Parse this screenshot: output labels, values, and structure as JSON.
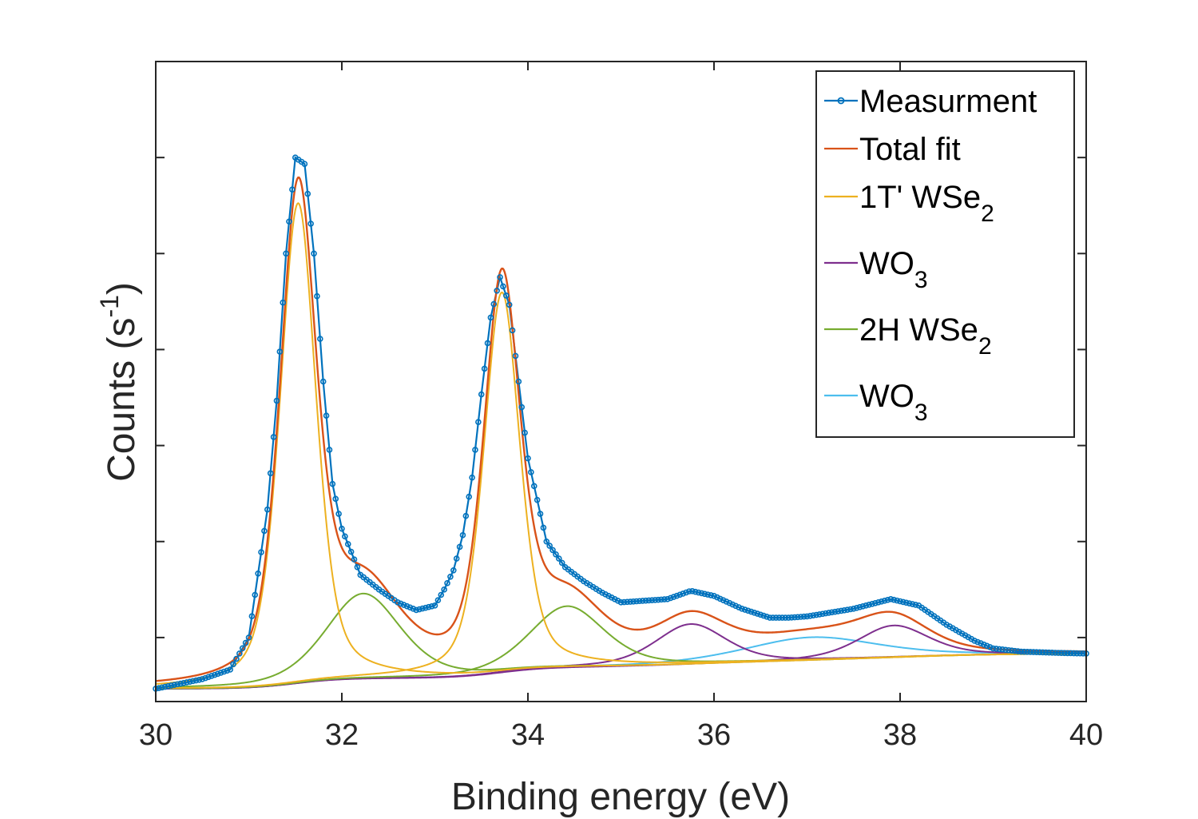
{
  "chart_data": {
    "type": "line",
    "xlabel": "Binding energy (eV)",
    "ylabel_main": "Counts (s",
    "ylabel_sup": "-1",
    "ylabel_close": ")",
    "xlim": [
      30,
      40
    ],
    "ylim": [
      0,
      1000
    ],
    "xticks": [
      30,
      32,
      34,
      36,
      38,
      40
    ],
    "yticks": [
      100,
      250,
      400,
      550,
      700,
      850
    ],
    "ytick_labels_shown": false,
    "grid": false,
    "legend_position": "top-right",
    "legend": [
      {
        "label": "Measurment",
        "sub": "",
        "color": "#0072BD",
        "marker": true
      },
      {
        "label": "Total fit",
        "sub": "",
        "color": "#D95319",
        "marker": false
      },
      {
        "label": "1T' WSe",
        "sub": "2",
        "color": "#EDB120",
        "marker": false
      },
      {
        "label": "WO",
        "sub": "3",
        "color": "#7E2F8E",
        "marker": false
      },
      {
        "label": "2H WSe",
        "sub": "2",
        "color": "#77AC30",
        "marker": false
      },
      {
        "label": "WO",
        "sub": "3",
        "color": "#4DBEEE",
        "marker": false
      }
    ],
    "background": {
      "start": 20,
      "end": 75,
      "step1_center": 31.5,
      "step2_center": 33.7,
      "step3_center": 35.9,
      "step4_center": 38.0
    },
    "components": [
      {
        "name": "1T' WSe2 (1)",
        "color": "#EDB120",
        "center": 31.53,
        "amplitude": 750,
        "fwhm": 0.46
      },
      {
        "name": "1T' WSe2 (2)",
        "color": "#EDB120",
        "center": 33.72,
        "amplitude": 594,
        "fwhm": 0.46
      },
      {
        "name": "2H WSe2 (1)",
        "color": "#77AC30",
        "center": 32.23,
        "amplitude": 133,
        "fwhm": 0.95
      },
      {
        "name": "2H WSe2 (2)",
        "color": "#77AC30",
        "center": 34.42,
        "amplitude": 96,
        "fwhm": 0.95
      },
      {
        "name": "WO3 (1)",
        "color": "#7E2F8E",
        "center": 35.75,
        "amplitude": 63,
        "fwhm": 0.9
      },
      {
        "name": "WO3 (2)",
        "color": "#7E2F8E",
        "center": 37.93,
        "amplitude": 50,
        "fwhm": 0.9
      },
      {
        "name": "WO3 (3)",
        "color": "#4DBEEE",
        "center": 37.05,
        "amplitude": 36,
        "fwhm": 1.7
      }
    ],
    "measurement": {
      "x_start": 30.0,
      "x_end": 40.0,
      "n_points": 301,
      "points": [
        [
          30.0,
          20
        ],
        [
          30.5,
          35
        ],
        [
          30.8,
          50
        ],
        [
          31.0,
          100
        ],
        [
          31.2,
          300
        ],
        [
          31.3,
          470
        ],
        [
          31.4,
          700
        ],
        [
          31.5,
          850
        ],
        [
          31.6,
          840
        ],
        [
          31.7,
          700
        ],
        [
          31.8,
          500
        ],
        [
          31.9,
          340
        ],
        [
          32.0,
          270
        ],
        [
          32.2,
          198
        ],
        [
          32.4,
          175
        ],
        [
          32.6,
          155
        ],
        [
          32.8,
          143
        ],
        [
          33.0,
          150
        ],
        [
          33.1,
          175
        ],
        [
          33.2,
          205
        ],
        [
          33.3,
          260
        ],
        [
          33.4,
          350
        ],
        [
          33.5,
          480
        ],
        [
          33.6,
          600
        ],
        [
          33.7,
          663
        ],
        [
          33.8,
          620
        ],
        [
          33.9,
          500
        ],
        [
          34.0,
          380
        ],
        [
          34.2,
          250
        ],
        [
          34.4,
          210
        ],
        [
          34.6,
          188
        ],
        [
          34.8,
          170
        ],
        [
          35.0,
          155
        ],
        [
          35.5,
          160
        ],
        [
          35.75,
          173
        ],
        [
          36.0,
          165
        ],
        [
          36.3,
          145
        ],
        [
          36.6,
          131
        ],
        [
          36.8,
          131
        ],
        [
          37.0,
          133
        ],
        [
          37.5,
          145
        ],
        [
          37.9,
          160
        ],
        [
          38.2,
          150
        ],
        [
          38.5,
          120
        ],
        [
          38.8,
          95
        ],
        [
          39.0,
          83
        ],
        [
          39.3,
          78
        ],
        [
          39.7,
          76
        ],
        [
          40.0,
          75
        ]
      ]
    }
  }
}
